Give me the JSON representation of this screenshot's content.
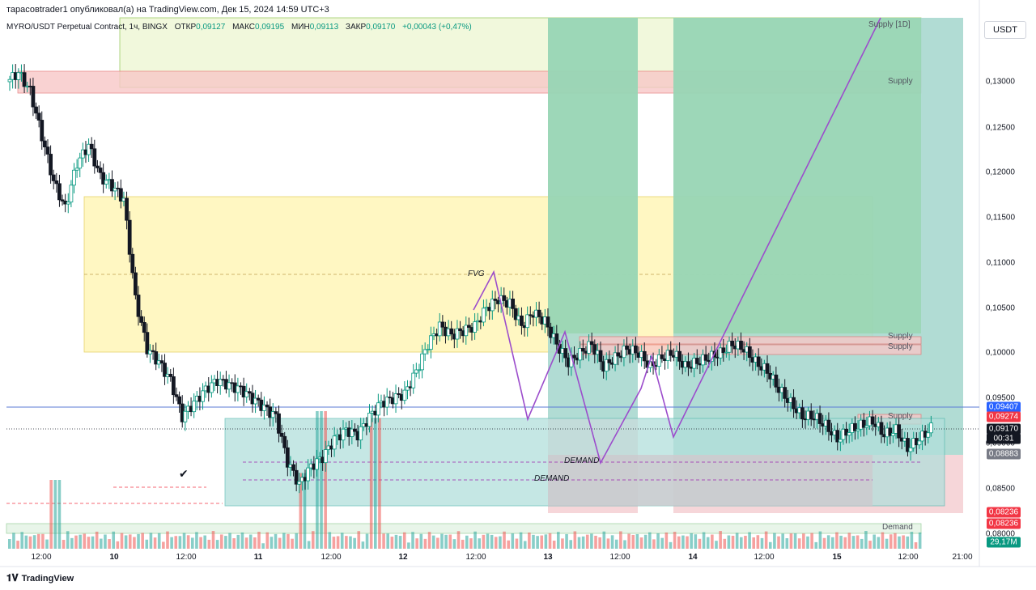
{
  "header": {
    "publisher_line": "тарасовtrader1 опубликовал(а) на TradingView.com, Дек 15, 2024 14:59 UTC+3",
    "symbol": "MYRO/USDT Perpetual Contract, 1ч, BINGX",
    "open_label": "ОТКР",
    "open": "0,09127",
    "high_label": "МАКС",
    "high": "0,09195",
    "low_label": "МИН",
    "low": "0,09113",
    "close_label": "ЗАКР",
    "close": "0,09170",
    "change": "+0,00043 (+0,47%)"
  },
  "currency_button": "USDT",
  "branding": "TradingView",
  "chart_data": {
    "type": "candlestick",
    "symbol": "MYRO/USDT",
    "interval": "1h",
    "exchange": "BINGX",
    "y_range": [
      0.08,
      0.135
    ],
    "y_ticks": [
      "0,13000",
      "0,12500",
      "0,12000",
      "0,11500",
      "0,11000",
      "0,10500",
      "0,10000",
      "0,09500",
      "0,09000",
      "0,08500",
      "0,08000"
    ],
    "x_ticks": [
      {
        "label": "12:00",
        "day": false
      },
      {
        "label": "10",
        "day": true
      },
      {
        "label": "12:00",
        "day": false
      },
      {
        "label": "11",
        "day": true
      },
      {
        "label": "12:00",
        "day": false
      },
      {
        "label": "12",
        "day": true
      },
      {
        "label": "12:00",
        "day": false
      },
      {
        "label": "13",
        "day": true
      },
      {
        "label": "12:00",
        "day": false
      },
      {
        "label": "14",
        "day": true
      },
      {
        "label": "12:00",
        "day": false
      },
      {
        "label": "15",
        "day": true
      },
      {
        "label": "12:00",
        "day": false
      },
      {
        "label": "21:00",
        "day": false
      }
    ],
    "price_path": [
      0.13,
      0.131,
      0.129,
      0.124,
      0.119,
      0.116,
      0.121,
      0.123,
      0.1195,
      0.1185,
      0.117,
      0.106,
      0.1005,
      0.099,
      0.097,
      0.093,
      0.0945,
      0.096,
      0.097,
      0.0965,
      0.096,
      0.095,
      0.094,
      0.093,
      0.088,
      0.0855,
      0.0875,
      0.0885,
      0.0905,
      0.0915,
      0.091,
      0.093,
      0.0945,
      0.095,
      0.0955,
      0.098,
      0.101,
      0.103,
      0.102,
      0.1025,
      0.103,
      0.105,
      0.106,
      0.1055,
      0.103,
      0.1045,
      0.1035,
      0.101,
      0.099,
      0.1,
      0.101,
      0.0985,
      0.0995,
      0.1005,
      0.1,
      0.0985,
      0.0995,
      0.1,
      0.0985,
      0.099,
      0.0995,
      0.1,
      0.101,
      0.1005,
      0.099,
      0.098,
      0.096,
      0.0945,
      0.093,
      0.093,
      0.092,
      0.0905,
      0.0915,
      0.092,
      0.0925,
      0.091,
      0.0915,
      0.0895,
      0.0905,
      0.0917
    ],
    "volume_spikes": [
      {
        "at": 0.34,
        "value": 1.0
      },
      {
        "at": 0.32,
        "value": 0.55
      },
      {
        "at": 0.4,
        "value": 0.95
      },
      {
        "at": 0.05,
        "value": 0.5
      }
    ],
    "volume_label": "29,17M",
    "zones": [
      {
        "label": "Supply [1D]",
        "kind": "supply_1d"
      },
      {
        "label": "Supply",
        "kind": "supply"
      },
      {
        "label": "FVG",
        "kind": "fvg"
      },
      {
        "label": "Supply",
        "kind": "supply"
      },
      {
        "label": "Supply",
        "kind": "supply"
      },
      {
        "label": "Supply",
        "kind": "supply"
      },
      {
        "label": "DEMAND",
        "kind": "demand"
      },
      {
        "label": "DEMAND",
        "kind": "demand"
      },
      {
        "label": "Demand",
        "kind": "demand"
      }
    ],
    "price_badges": [
      {
        "value": "0,09407",
        "color": "#2962ff"
      },
      {
        "value": "0,09274",
        "color": "#f23645"
      },
      {
        "value": "0,09170",
        "color": "#131722"
      },
      {
        "value": "00:31",
        "color": "#131722"
      },
      {
        "value": "0,08883",
        "color": "#787b86"
      },
      {
        "value": "0,08236",
        "color": "#f23645"
      },
      {
        "value": "0,08236",
        "color": "#f23645"
      },
      {
        "value": "29,17M",
        "color": "#089981"
      }
    ],
    "colors": {
      "up": "#089981",
      "down": "#131722",
      "volume_up": "#26a69a",
      "volume_down": "#ef5350",
      "fvg_fill": "#fff7c2",
      "supply_fill": "#f8c8c8",
      "demand_fill": "#b2dfdb",
      "projection": "#9c4dcc",
      "target_fill": "#a8d8cf",
      "stop_fill": "#f6d6d9",
      "green_band": "#8fd3a5"
    }
  }
}
